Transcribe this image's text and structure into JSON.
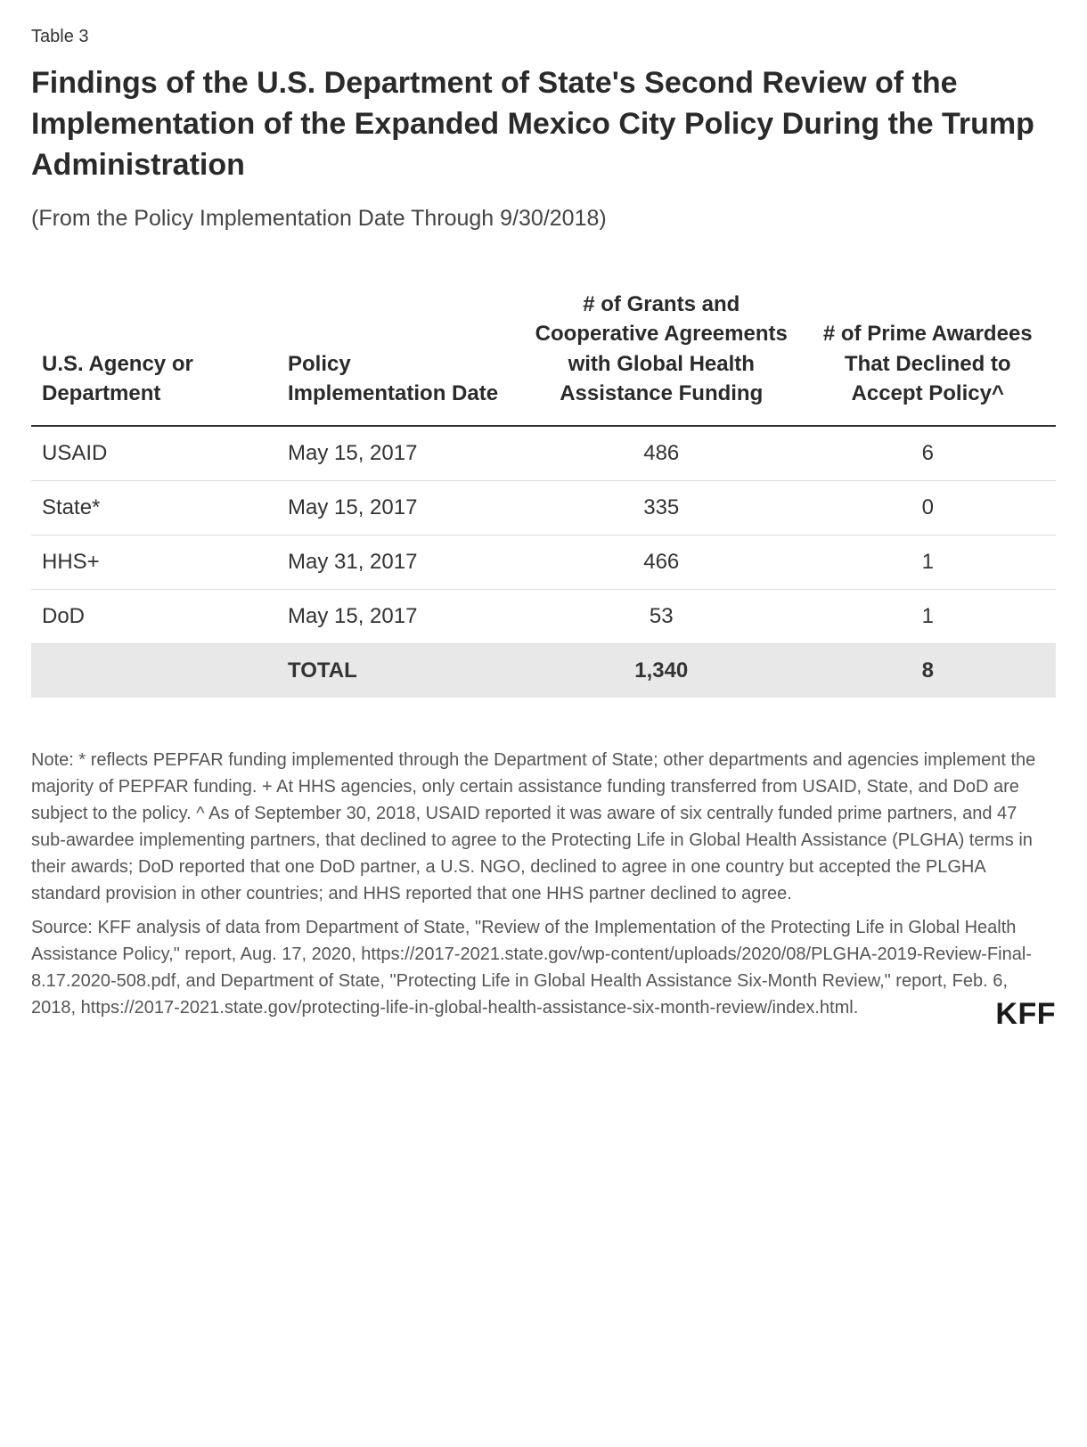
{
  "tableLabel": "Table 3",
  "title": "Findings of the U.S. Department of State's Second Review of the Implementation of the Expanded Mexico City Policy During the Trump Administration",
  "subtitle": "(From the Policy Implementation Date Through 9/30/2018)",
  "table": {
    "columns": [
      {
        "label": "U.S. Agency or Department",
        "align": "left"
      },
      {
        "label": "Policy Implementation Date",
        "align": "left"
      },
      {
        "label": "# of Grants and Cooperative Agreements with Global Health Assistance Funding",
        "align": "center"
      },
      {
        "label": "# of Prime Awardees That Declined to Accept Policy^",
        "align": "center"
      }
    ],
    "rows": [
      {
        "agency": "USAID",
        "date": "May 15, 2017",
        "grants": "486",
        "declined": "6"
      },
      {
        "agency": "State*",
        "date": "May 15, 2017",
        "grants": "335",
        "declined": "0"
      },
      {
        "agency": "HHS+",
        "date": "May 31, 2017",
        "grants": "466",
        "declined": "1"
      },
      {
        "agency": "DoD",
        "date": "May 15, 2017",
        "grants": "53",
        "declined": "1"
      }
    ],
    "total": {
      "agency": "",
      "date": "TOTAL",
      "grants": "1,340",
      "declined": "8"
    },
    "colors": {
      "headerBorder": "#333333",
      "rowBorder": "#dddddd",
      "totalBg": "#e8e8e8",
      "text": "#333333"
    }
  },
  "note": "Note: * reflects PEPFAR funding implemented through the Department of State; other departments and agencies implement the majority of PEPFAR funding. + At HHS agencies, only certain assistance funding transferred from USAID, State, and DoD are subject to the policy. ^ As of September 30, 2018, USAID reported it was aware of six centrally funded prime partners, and 47 sub-awardee implementing partners, that declined to agree to the Protecting Life in Global Health Assistance (PLGHA) terms in their awards; DoD reported that one DoD partner, a U.S. NGO, declined to agree in one country but accepted the PLGHA standard provision in other countries; and HHS reported that one HHS partner declined to agree.",
  "source": "Source: KFF analysis of data from Department of State, \"Review of the Implementation of the Protecting Life in Global Health Assistance Policy,\" report, Aug. 17, 2020, https://2017-2021.state.gov/wp-content/uploads/2020/08/PLGHA-2019-Review-Final-8.17.2020-508.pdf, and Department of State, \"Protecting Life in Global Health Assistance Six-Month Review,\" report, Feb. 6, 2018, https://2017-2021.state.gov/protecting-life-in-global-health-assistance-six-month-review/index.html.",
  "logo": "KFF"
}
